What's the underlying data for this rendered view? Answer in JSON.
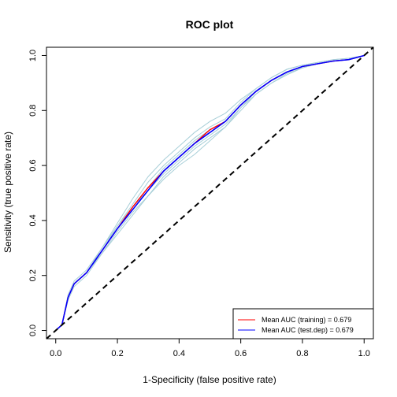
{
  "chart_data": {
    "type": "line",
    "title": "ROC plot",
    "xlabel": "1-Specificity (false positive rate)",
    "ylabel": "Sensitivity (true positive rate)",
    "xlim": [
      -0.03,
      1.03
    ],
    "ylim": [
      -0.03,
      1.03
    ],
    "xticks": [
      "0.0",
      "0.2",
      "0.4",
      "0.6",
      "0.8",
      "1.0"
    ],
    "yticks": [
      "0.0",
      "0.2",
      "0.4",
      "0.6",
      "0.8",
      "1.0"
    ],
    "grid": false,
    "legend_position": "bottom-right",
    "series": [
      {
        "name": "Mean AUC (training) = 0.679",
        "color": "#ff0000",
        "x": [
          0,
          0.02,
          0.04,
          0.06,
          0.08,
          0.1,
          0.15,
          0.2,
          0.25,
          0.3,
          0.35,
          0.4,
          0.45,
          0.5,
          0.55,
          0.6,
          0.65,
          0.7,
          0.75,
          0.8,
          0.85,
          0.9,
          0.95,
          1.0
        ],
        "y": [
          0,
          0.02,
          0.12,
          0.17,
          0.19,
          0.21,
          0.29,
          0.37,
          0.45,
          0.52,
          0.58,
          0.63,
          0.68,
          0.73,
          0.76,
          0.82,
          0.87,
          0.91,
          0.94,
          0.96,
          0.97,
          0.98,
          0.985,
          1.0
        ]
      },
      {
        "name": "Mean AUC (test.dep) = 0.679",
        "color": "#0000ff",
        "x": [
          0,
          0.02,
          0.04,
          0.06,
          0.08,
          0.1,
          0.15,
          0.2,
          0.25,
          0.3,
          0.35,
          0.4,
          0.45,
          0.5,
          0.55,
          0.6,
          0.65,
          0.7,
          0.75,
          0.8,
          0.85,
          0.9,
          0.95,
          1.0
        ],
        "y": [
          0,
          0.02,
          0.12,
          0.17,
          0.19,
          0.21,
          0.29,
          0.37,
          0.44,
          0.51,
          0.58,
          0.63,
          0.68,
          0.72,
          0.76,
          0.82,
          0.87,
          0.91,
          0.94,
          0.96,
          0.97,
          0.98,
          0.985,
          1.0
        ]
      }
    ],
    "replicate_curves": {
      "color": "#a8cfd8",
      "x": [
        0,
        0.02,
        0.04,
        0.06,
        0.08,
        0.1,
        0.15,
        0.2,
        0.25,
        0.3,
        0.35,
        0.4,
        0.45,
        0.5,
        0.55,
        0.6,
        0.65,
        0.7,
        0.75,
        0.8,
        0.85,
        0.9,
        0.95,
        1.0
      ],
      "y": [
        [
          0,
          0.02,
          0.13,
          0.18,
          0.2,
          0.22,
          0.3,
          0.39,
          0.48,
          0.56,
          0.62,
          0.67,
          0.72,
          0.76,
          0.79,
          0.84,
          0.88,
          0.92,
          0.95,
          0.965,
          0.975,
          0.985,
          0.99,
          1.0
        ],
        [
          0,
          0.02,
          0.11,
          0.16,
          0.18,
          0.2,
          0.28,
          0.36,
          0.43,
          0.49,
          0.55,
          0.6,
          0.64,
          0.69,
          0.74,
          0.8,
          0.86,
          0.9,
          0.93,
          0.955,
          0.97,
          0.98,
          0.985,
          1.0
        ],
        [
          0,
          0.02,
          0.12,
          0.17,
          0.19,
          0.21,
          0.3,
          0.38,
          0.46,
          0.54,
          0.6,
          0.65,
          0.7,
          0.74,
          0.77,
          0.83,
          0.88,
          0.92,
          0.95,
          0.965,
          0.975,
          0.985,
          0.99,
          1.0
        ],
        [
          0,
          0.02,
          0.12,
          0.17,
          0.19,
          0.21,
          0.28,
          0.35,
          0.42,
          0.49,
          0.56,
          0.61,
          0.66,
          0.7,
          0.74,
          0.81,
          0.86,
          0.9,
          0.935,
          0.955,
          0.97,
          0.98,
          0.985,
          1.0
        ],
        [
          0,
          0.02,
          0.12,
          0.17,
          0.19,
          0.21,
          0.29,
          0.37,
          0.45,
          0.52,
          0.59,
          0.64,
          0.69,
          0.73,
          0.76,
          0.82,
          0.87,
          0.91,
          0.94,
          0.96,
          0.97,
          0.98,
          0.985,
          1.0
        ],
        [
          0,
          0.02,
          0.12,
          0.17,
          0.19,
          0.21,
          0.29,
          0.38,
          0.45,
          0.51,
          0.57,
          0.62,
          0.67,
          0.71,
          0.75,
          0.81,
          0.87,
          0.91,
          0.94,
          0.96,
          0.97,
          0.98,
          0.985,
          1.0
        ]
      ]
    },
    "reference_line": {
      "x": [
        0,
        1
      ],
      "y": [
        0,
        1
      ],
      "color": "#000000",
      "style": "dashed"
    }
  }
}
